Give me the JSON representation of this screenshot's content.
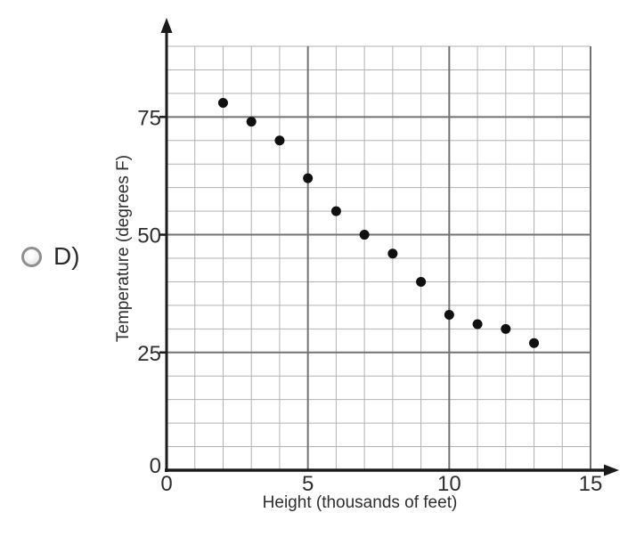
{
  "option": {
    "label": "D)"
  },
  "chart_data": {
    "type": "scatter",
    "title": "",
    "xlabel": "Height (thousands of feet)",
    "ylabel": "Temperature (degrees F)",
    "xlim": [
      0,
      15
    ],
    "ylim": [
      0,
      90
    ],
    "x_major_ticks": [
      0,
      5,
      10,
      15
    ],
    "y_major_ticks": [
      0,
      25,
      50,
      75
    ],
    "x_minor_step": 1,
    "y_minor_step": 5,
    "grid": "on",
    "legend": "none",
    "x": [
      2,
      3,
      4,
      5,
      6,
      7,
      8,
      9,
      10,
      11,
      12,
      13
    ],
    "y": [
      78,
      74,
      70,
      62,
      55,
      50,
      46,
      40,
      33,
      31,
      30,
      27
    ],
    "colors": {
      "point": "#101010",
      "axis": "#1b1b1b",
      "grid_minor": "#b2b2b2",
      "grid_major": "#727272",
      "text": "#2e2e2e",
      "background": "#ffffff"
    }
  }
}
